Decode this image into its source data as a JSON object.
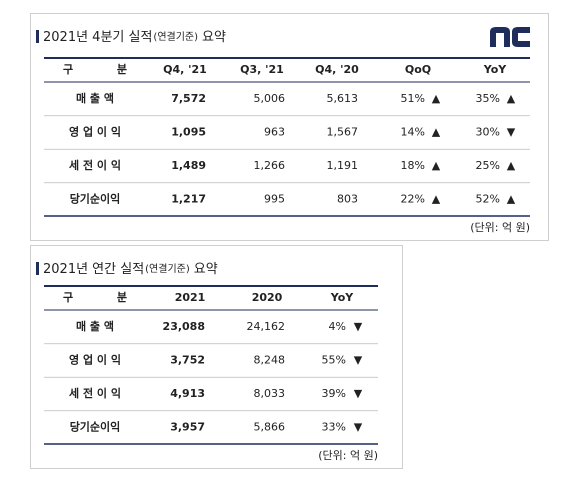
{
  "quarterly": {
    "title": {
      "main": "2021년 4분기 실적",
      "basis": "(연결기준)",
      "suffix": "요약"
    },
    "header": [
      "구 분",
      "Q4, '21",
      "Q3, '21",
      "Q4, '20",
      "QoQ",
      "YoY"
    ],
    "rows": [
      [
        "매 출 액",
        "7,572",
        "5,006",
        "5,613",
        "51%",
        "▲",
        "35%",
        "▲"
      ],
      [
        "영 업 이 익",
        "1,095",
        "963",
        "1,567",
        "14%",
        "▲",
        "30%",
        "▼"
      ],
      [
        "세 전 이 익",
        "1,489",
        "1,266",
        "1,191",
        "18%",
        "▲",
        "25%",
        "▲"
      ],
      [
        "당기순이익",
        "1,217",
        "995",
        "803",
        "22%",
        "▲",
        "52%",
        "▲"
      ]
    ],
    "note": "(단위: 억 원)"
  },
  "annual": {
    "title": {
      "main": "2021년 연간 실적",
      "basis": "(연결기준)",
      "suffix": "요약"
    },
    "header": [
      "구 분",
      "2021",
      "2020",
      "YoY"
    ],
    "rows": [
      [
        "매 출 액",
        "23,088",
        "24,162",
        "4%",
        "▼"
      ],
      [
        "영 업 이 익",
        "3,752",
        "8,248",
        "55%",
        "▼"
      ],
      [
        "세 전 이 익",
        "4,913",
        "8,033",
        "39%",
        "▼"
      ],
      [
        "당기순이익",
        "3,957",
        "5,866",
        "33%",
        "▼"
      ]
    ],
    "note": "(단위: 억 원)"
  }
}
